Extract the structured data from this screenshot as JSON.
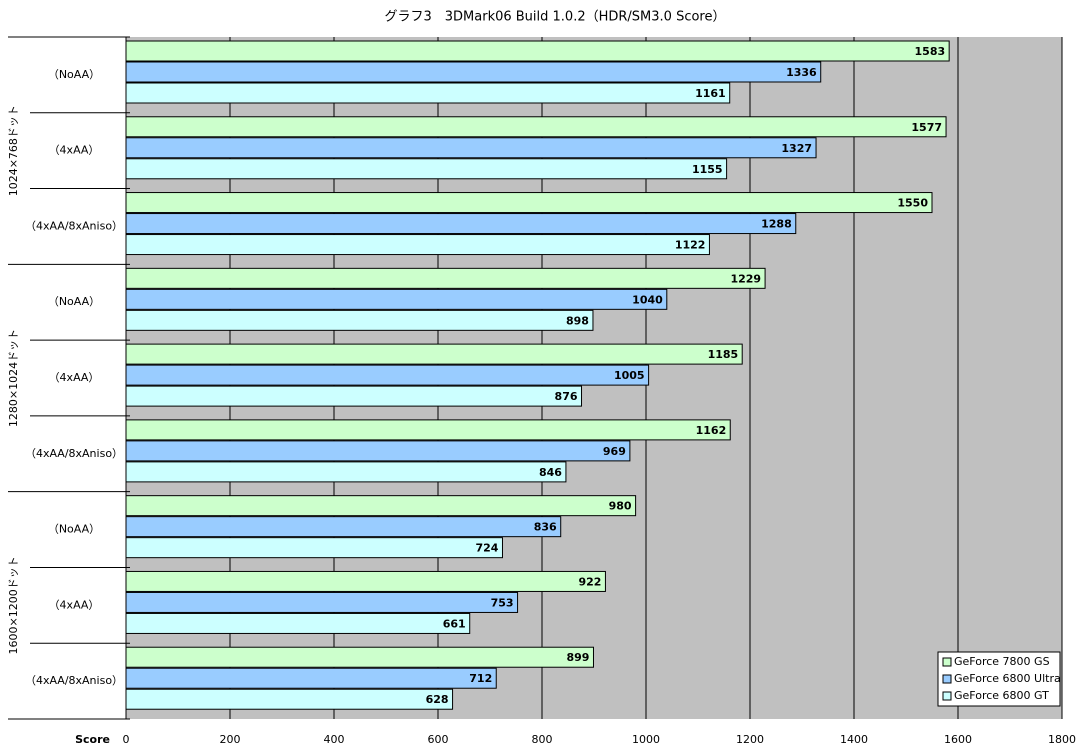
{
  "chart_data": {
    "type": "bar",
    "orientation": "horizontal",
    "title": "グラフ3　3DMark06 Build 1.0.2（HDR/SM3.0 Score）",
    "x_label": "Score",
    "categories": [
      "（NoAA）",
      "（4xAA）",
      "（4xAA/8xAniso）",
      "（NoAA）",
      "（4xAA）",
      "（4xAA/8xAniso）",
      "（NoAA）",
      "（4xAA）",
      "（4xAA/8xAniso）"
    ],
    "groups": [
      "1024×768ドット",
      "1280×1024ドット",
      "1600×1200ドット"
    ],
    "series": [
      {
        "name": "GeForce 7800 GS",
        "color": "#ccffcc",
        "values": [
          1583,
          1577,
          1550,
          1229,
          1185,
          1162,
          980,
          922,
          899
        ]
      },
      {
        "name": "GeForce 6800 Ultra",
        "color": "#99ccff",
        "values": [
          1336,
          1327,
          1288,
          1040,
          1005,
          969,
          836,
          753,
          712
        ]
      },
      {
        "name": "GeForce 6800 GT",
        "color": "#ccffff",
        "values": [
          1161,
          1155,
          1122,
          898,
          876,
          846,
          724,
          661,
          628
        ]
      }
    ],
    "xlim": [
      0,
      1800
    ],
    "xticks": [
      0,
      200,
      400,
      600,
      800,
      1000,
      1200,
      1400,
      1600,
      1800
    ],
    "grid": true,
    "legend": "lower right"
  }
}
